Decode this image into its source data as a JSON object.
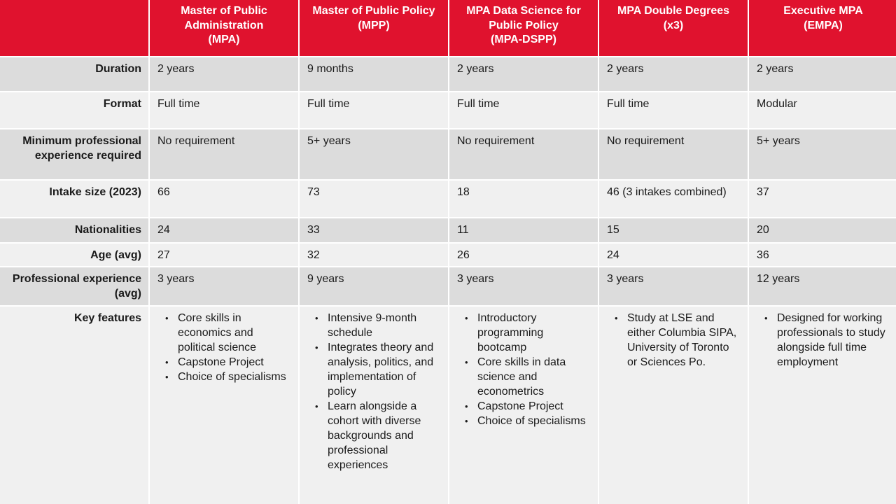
{
  "header": {
    "corner": "",
    "columns": [
      "Master of Public\nAdministration\n(MPA)",
      "Master of Public Policy\n(MPP)",
      "MPA Data Science for\nPublic Policy\n(MPA-DSPP)",
      "MPA Double Degrees\n(x3)",
      "Executive MPA\n(EMPA)"
    ]
  },
  "rows": [
    {
      "label": "Duration",
      "values": [
        "2 years",
        "9 months",
        "2 years",
        "2 years",
        "2 years"
      ]
    },
    {
      "label": "Format",
      "values": [
        "Full time",
        "Full time",
        "Full time",
        "Full time",
        "Modular"
      ]
    },
    {
      "label": "Minimum professional\nexperience required",
      "values": [
        "No requirement",
        "5+ years",
        "No requirement",
        "No requirement",
        "5+ years"
      ]
    },
    {
      "label": "Intake size (2023)",
      "values": [
        "66",
        "73",
        "18",
        "46 (3 intakes combined)",
        "37"
      ]
    },
    {
      "label": "Nationalities",
      "values": [
        "24",
        "33",
        "11",
        "15",
        "20"
      ]
    },
    {
      "label": "Age (avg)",
      "values": [
        "27",
        "32",
        "26",
        "24",
        "36"
      ]
    },
    {
      "label": "Professional experience\n(avg)",
      "values": [
        "3 years",
        "9 years",
        "3 years",
        "3 years",
        "12 years"
      ]
    }
  ],
  "key_features": {
    "label": "Key features",
    "columns": [
      [
        "Core skills in economics and political science",
        "Capstone Project",
        "Choice of specialisms"
      ],
      [
        "Intensive 9-month schedule",
        "Integrates theory and analysis, politics, and implementation of policy",
        "Learn alongside a cohort with diverse backgrounds and professional experiences"
      ],
      [
        "Introductory programming bootcamp",
        "Core skills in data science and econometrics",
        "Capstone Project",
        "Choice of specialisms"
      ],
      [
        "Study at LSE and either Columbia SIPA, University of Toronto or Sciences Po."
      ],
      [
        "Designed for working professionals to study alongside full time employment"
      ]
    ]
  },
  "colors": {
    "header_red": "#e0122e",
    "row_dark": "#dcdcdc",
    "row_light": "#f0f0f0"
  }
}
